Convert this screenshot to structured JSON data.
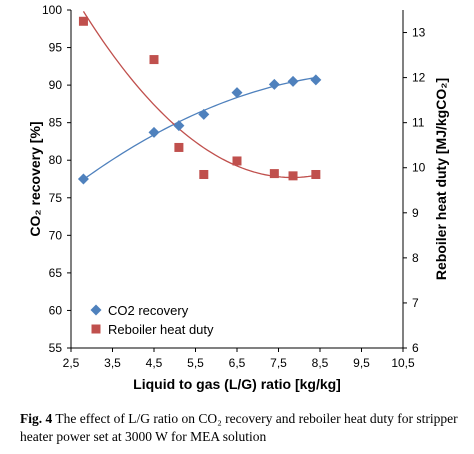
{
  "chart_data": {
    "type": "scatter",
    "x_axis": {
      "label": "Liquid to gas (L/G) ratio [kg/kg]",
      "range": [
        2.5,
        10.5
      ],
      "ticks": [
        "2,5",
        "3,5",
        "4,5",
        "5,5",
        "6,5",
        "7,5",
        "8,5",
        "9,5",
        "10,5"
      ],
      "tick_values": [
        2.5,
        3.5,
        4.5,
        5.5,
        6.5,
        7.5,
        8.5,
        9.5,
        10.5
      ]
    },
    "y_left": {
      "label": "CO₂ recovery [%]",
      "range": [
        55,
        100
      ],
      "ticks": [
        "55",
        "60",
        "65",
        "70",
        "75",
        "80",
        "85",
        "90",
        "95",
        "100"
      ],
      "tick_values": [
        55,
        60,
        65,
        70,
        75,
        80,
        85,
        90,
        95,
        100
      ]
    },
    "y_right": {
      "label": "Reboiler heat duty  [MJ/kgCO₂]",
      "range": [
        6,
        13.5
      ],
      "ticks": [
        "6",
        "7",
        "8",
        "9",
        "10",
        "11",
        "12",
        "13"
      ],
      "tick_values": [
        6,
        7,
        8,
        9,
        10,
        11,
        12,
        13
      ]
    },
    "series": [
      {
        "name": "CO2 recovery",
        "axis": "left",
        "marker": "diamond",
        "color": "#4f81bd",
        "x": [
          2.8,
          4.5,
          5.1,
          5.7,
          6.5,
          7.4,
          7.85,
          8.4
        ],
        "y": [
          77.5,
          83.7,
          84.6,
          86.1,
          89.0,
          90.1,
          90.5,
          90.7
        ],
        "trend": "polynomial"
      },
      {
        "name": "Reboiler heat duty",
        "axis": "right",
        "marker": "square",
        "color": "#c0504d",
        "x": [
          2.8,
          4.5,
          5.1,
          5.7,
          6.5,
          7.4,
          7.85,
          8.4
        ],
        "y": [
          13.25,
          12.4,
          10.45,
          9.85,
          10.15,
          9.87,
          9.82,
          9.85
        ],
        "trend": "polynomial"
      }
    ],
    "legend": "bottom-left",
    "grid": false
  },
  "caption": {
    "fig_label": "Fig. 4",
    "text": "  The effect of L/G ratio on CO₂ recovery and reboiler heat duty for stripper heater power set at 3000 W for MEA solution"
  }
}
